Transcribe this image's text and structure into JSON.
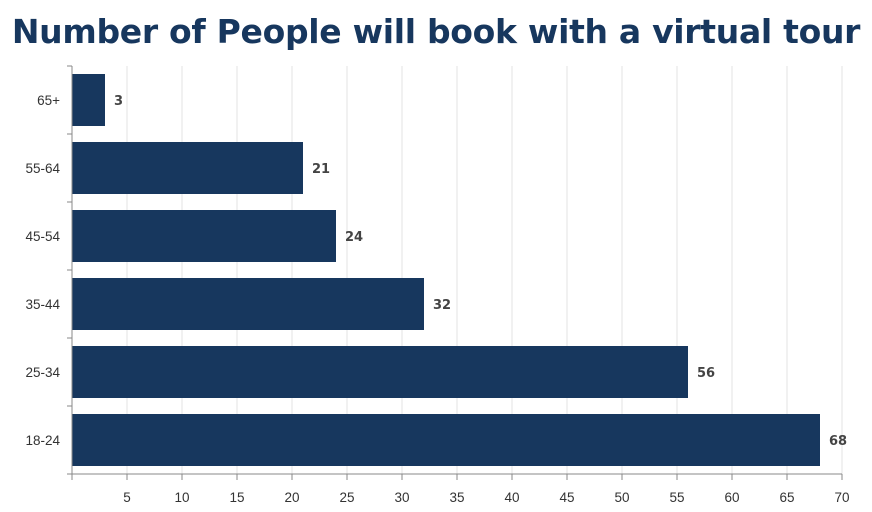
{
  "chart_data": {
    "type": "bar",
    "orientation": "horizontal",
    "title": "Number of People will book with a virtual tour",
    "categories": [
      "65+",
      "55-64",
      "45-54",
      "35-44",
      "25-34",
      "18-24"
    ],
    "values": [
      3,
      21,
      24,
      32,
      56,
      68
    ],
    "xlim": [
      0,
      70
    ],
    "xticks": [
      5,
      10,
      15,
      20,
      25,
      30,
      35,
      40,
      45,
      50,
      55,
      60,
      65,
      70
    ],
    "grid": true,
    "bar_color": "#17375e"
  }
}
